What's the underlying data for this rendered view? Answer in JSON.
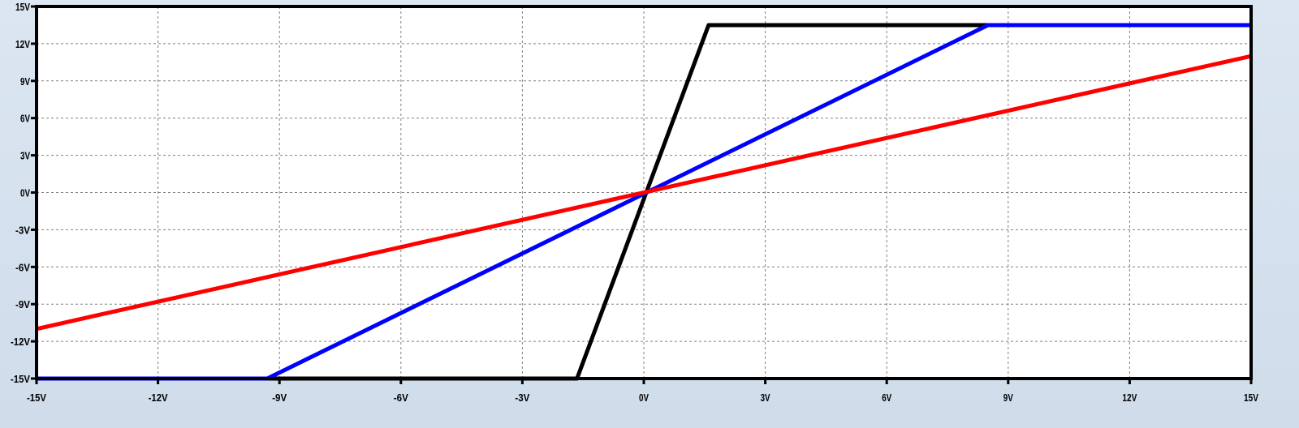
{
  "chart_data": {
    "type": "line",
    "title": "",
    "xlabel": "",
    "ylabel": "",
    "xlim": [
      -15,
      15
    ],
    "ylim": [
      -15,
      15
    ],
    "grid": true,
    "x_ticks": [
      {
        "value": -15,
        "label": "-15V"
      },
      {
        "value": -12,
        "label": "-12V"
      },
      {
        "value": -9,
        "label": "-9V"
      },
      {
        "value": -6,
        "label": "-6V"
      },
      {
        "value": -3,
        "label": "-3V"
      },
      {
        "value": 0,
        "label": "0V"
      },
      {
        "value": 3,
        "label": "3V"
      },
      {
        "value": 6,
        "label": "6V"
      },
      {
        "value": 9,
        "label": "9V"
      },
      {
        "value": 12,
        "label": "12V"
      },
      {
        "value": 15,
        "label": "15V"
      }
    ],
    "y_ticks": [
      {
        "value": 15,
        "label": "15V"
      },
      {
        "value": 12,
        "label": "12V"
      },
      {
        "value": 9,
        "label": "9V"
      },
      {
        "value": 6,
        "label": "6V"
      },
      {
        "value": 3,
        "label": "3V"
      },
      {
        "value": 0,
        "label": "0V"
      },
      {
        "value": -3,
        "label": "-3V"
      },
      {
        "value": -6,
        "label": "-6V"
      },
      {
        "value": -9,
        "label": "-9V"
      },
      {
        "value": -12,
        "label": "-12V"
      },
      {
        "value": -15,
        "label": "-15V"
      }
    ],
    "series": [
      {
        "color": "#000000",
        "x": [
          -15,
          -1.65,
          1.6,
          15
        ],
        "y": [
          -15,
          -15,
          13.5,
          13.5
        ]
      },
      {
        "color": "#0000ff",
        "x": [
          -15,
          -9.3,
          8.5,
          15
        ],
        "y": [
          -15,
          -15,
          13.5,
          13.5
        ]
      },
      {
        "color": "#ff0000",
        "x": [
          -15,
          15
        ],
        "y": [
          -11,
          11
        ]
      }
    ]
  }
}
